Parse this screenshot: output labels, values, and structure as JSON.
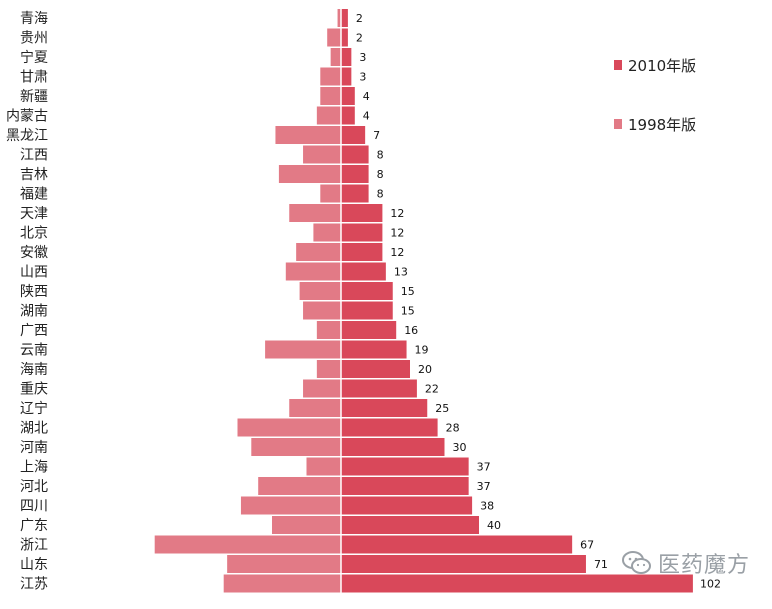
{
  "chart_data": {
    "type": "bar",
    "orientation": "horizontal-butterfly",
    "categories": [
      "青海",
      "贵州",
      "宁夏",
      "甘肃",
      "新疆",
      "内蒙古",
      "黑龙江",
      "江西",
      "吉林",
      "福建",
      "天津",
      "北京",
      "安徽",
      "山西",
      "陕西",
      "湖南",
      "广西",
      "云南",
      "海南",
      "重庆",
      "辽宁",
      "湖北",
      "河南",
      "上海",
      "河北",
      "四川",
      "广东",
      "浙江",
      "山东",
      "江苏"
    ],
    "series": [
      {
        "name": "2010年版",
        "color": "#d9485a",
        "side": "right",
        "values": [
          2,
          2,
          3,
          3,
          4,
          4,
          7,
          8,
          8,
          8,
          12,
          12,
          12,
          13,
          15,
          15,
          16,
          19,
          20,
          22,
          25,
          28,
          30,
          37,
          37,
          38,
          40,
          67,
          71,
          102
        ]
      },
      {
        "name": "1998年版",
        "color": "#e27a86",
        "side": "left",
        "values": [
          1,
          4,
          3,
          6,
          6,
          7,
          19,
          11,
          18,
          6,
          15,
          8,
          13,
          16,
          12,
          11,
          7,
          22,
          7,
          11,
          15,
          30,
          26,
          10,
          24,
          29,
          20,
          54,
          33,
          34
        ]
      }
    ],
    "data_labels": [
      "2",
      "2",
      "3",
      "3",
      "4",
      "4",
      "7",
      "8",
      "8",
      "8",
      "12",
      "12",
      "12",
      "13",
      "15",
      "15",
      "16",
      "19",
      "20",
      "22",
      "25",
      "28",
      "30",
      "37",
      "37",
      "38",
      "40",
      "67",
      "71",
      "102"
    ],
    "title": "",
    "xlabel": "",
    "ylabel": "",
    "legend": "right"
  },
  "watermark": {
    "text": "医药魔方",
    "icon": "wechat-icon"
  }
}
